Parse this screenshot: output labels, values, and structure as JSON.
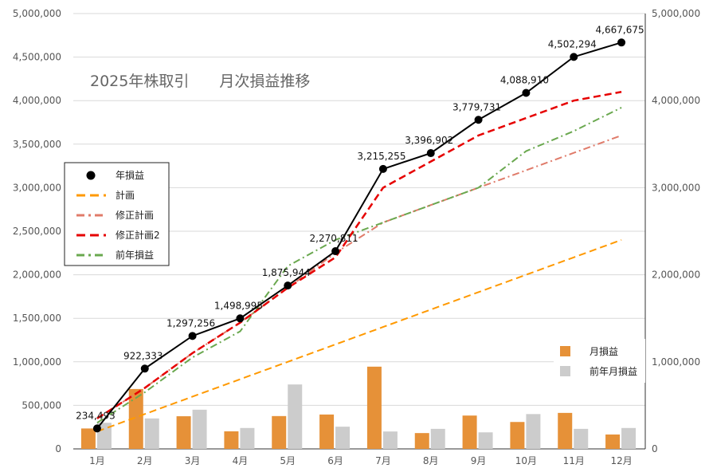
{
  "chart_data": {
    "type": "combo",
    "title": "2025年株取引　　月次損益推移",
    "categories": [
      "1月",
      "2月",
      "3月",
      "4月",
      "5月",
      "6月",
      "7月",
      "8月",
      "9月",
      "10月",
      "11月",
      "12月"
    ],
    "left_axis": {
      "ylim": [
        0,
        5000000
      ],
      "ticks": [
        "0",
        "500,000",
        "1,000,000",
        "1,500,000",
        "2,000,000",
        "2,500,000",
        "3,000,000",
        "3,500,000",
        "4,000,000",
        "4,500,000",
        "5,000,000"
      ]
    },
    "right_axis": {
      "ylim": [
        0,
        5000000
      ],
      "ticks": [
        "0",
        "1,000,000",
        "2,000,000",
        "3,000,000",
        "4,000,000",
        "5,000,000"
      ]
    },
    "grid": true,
    "line_series": [
      {
        "name": "年損益",
        "color": "#000000",
        "style": "solid-markers",
        "values": [
          234493,
          922333,
          1297256,
          1498995,
          1875944,
          2270811,
          3215255,
          3396902,
          3779731,
          4088910,
          4502294,
          4667675
        ],
        "labels": [
          "234,493",
          "922,333",
          "1,297,256",
          "1,498,995",
          "1,875,944",
          "2,270,811",
          "3,215,255",
          "3,396,902",
          "3,779,731",
          "4,088,910",
          "4,502,294",
          "4,667,675"
        ]
      },
      {
        "name": "計画",
        "color": "#ff9900",
        "style": "dashed",
        "values": [
          200000,
          400000,
          600000,
          800000,
          1000000,
          1200000,
          1400000,
          1600000,
          1800000,
          2000000,
          2200000,
          2400000
        ]
      },
      {
        "name": "修正計画",
        "color": "#e07b6a",
        "style": "dashdot",
        "values": [
          350000,
          700000,
          1100000,
          1450000,
          1850000,
          2250000,
          2600000,
          2800000,
          3000000,
          3200000,
          3400000,
          3600000
        ]
      },
      {
        "name": "修正計画2",
        "color": "#e60000",
        "style": "dashed-bold",
        "values": [
          350000,
          700000,
          1100000,
          1450000,
          1850000,
          2200000,
          3000000,
          3300000,
          3600000,
          3800000,
          4000000,
          4100000
        ]
      },
      {
        "name": "前年損益",
        "color": "#6aa84f",
        "style": "dashdot",
        "values": [
          300000,
          650000,
          1050000,
          1350000,
          2100000,
          2400000,
          2600000,
          2800000,
          3000000,
          3420000,
          3650000,
          3920000
        ]
      }
    ],
    "bar_series": [
      {
        "name": "月損益",
        "color": "#e69138",
        "values": [
          234493,
          687840,
          374923,
          201739,
          376949,
          394867,
          944444,
          181647,
          382829,
          309179,
          413384,
          165381
        ]
      },
      {
        "name": "前年月損益",
        "color": "#cccccc",
        "values": [
          300000,
          350000,
          450000,
          240000,
          740000,
          255000,
          200000,
          230000,
          190000,
          400000,
          230000,
          240000
        ]
      }
    ],
    "legend_main": [
      "年損益",
      "計画",
      "修正計画",
      "修正計画2",
      "前年損益"
    ],
    "legend_bars": [
      "月損益",
      "前年月損益"
    ]
  }
}
